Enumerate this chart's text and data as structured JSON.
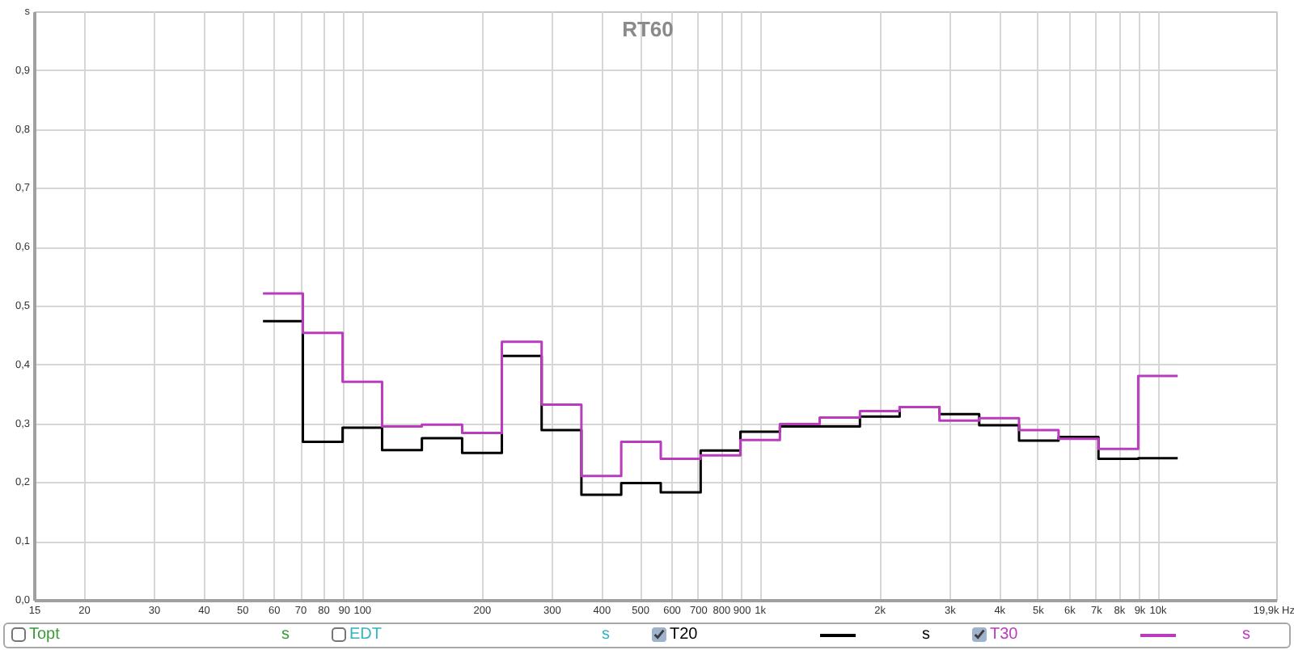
{
  "chart_data": {
    "type": "step",
    "title": "RT60",
    "x": [
      56.2,
      70.8,
      89.1,
      112,
      141,
      178,
      224,
      282,
      355,
      447,
      562,
      708,
      891,
      1120,
      1410,
      1780,
      2240,
      2820,
      3550,
      4470,
      5620,
      7080,
      8910,
      11200
    ],
    "series": [
      {
        "name": "Topt",
        "color": "#3a9a3a",
        "values": [
          null,
          null,
          null,
          null,
          null,
          null,
          null,
          null,
          null,
          null,
          null,
          null,
          null,
          null,
          null,
          null,
          null,
          null,
          null,
          null,
          null,
          null,
          null,
          null
        ]
      },
      {
        "name": "EDT",
        "color": "#33b3c3",
        "values": [
          null,
          null,
          null,
          null,
          null,
          null,
          null,
          null,
          null,
          null,
          null,
          null,
          null,
          null,
          null,
          null,
          null,
          null,
          null,
          null,
          null,
          null,
          null,
          null
        ]
      },
      {
        "name": "T20",
        "color": "#000000",
        "values": [
          0.475,
          0.27,
          0.294,
          0.256,
          0.276,
          0.251,
          0.416,
          0.29,
          0.18,
          0.2,
          0.184,
          0.255,
          0.287,
          0.296,
          0.296,
          0.313,
          0.329,
          0.317,
          0.298,
          0.272,
          0.278,
          0.241,
          0.242,
          0.242
        ]
      },
      {
        "name": "T30",
        "color": "#b83cbc",
        "values": [
          0.522,
          0.455,
          0.372,
          0.296,
          0.299,
          0.285,
          0.44,
          0.333,
          0.212,
          0.27,
          0.241,
          0.247,
          0.273,
          0.3,
          0.311,
          0.322,
          0.329,
          0.306,
          0.31,
          0.29,
          0.275,
          0.258,
          0.382,
          0.382
        ]
      }
    ],
    "annotations": [
      "s",
      "s",
      "s",
      "s"
    ],
    "xlim": [
      15,
      19900
    ],
    "xticks": [
      15,
      20,
      30,
      40,
      50,
      60,
      70,
      80,
      90,
      100,
      200,
      300,
      400,
      500,
      600,
      700,
      800,
      900,
      {
        "value": 1000,
        "label": "1k"
      },
      {
        "value": 2000,
        "label": "2k"
      },
      {
        "value": 3000,
        "label": "3k"
      },
      {
        "value": 4000,
        "label": "4k"
      },
      {
        "value": 5000,
        "label": "5k"
      },
      {
        "value": 6000,
        "label": "6k"
      },
      {
        "value": 7000,
        "label": "7k"
      },
      {
        "value": 8000,
        "label": "8k"
      },
      {
        "value": 9000,
        "label": "9k"
      },
      {
        "value": 10000,
        "label": "10k"
      },
      {
        "value": 19900,
        "label": "19,9k Hz"
      }
    ],
    "ylim": [
      0,
      1
    ],
    "yticks": [
      {
        "value": 0,
        "label": "0,0"
      },
      {
        "value": 0.1,
        "label": "0,1"
      },
      {
        "value": 0.2,
        "label": "0,2"
      },
      {
        "value": 0.3,
        "label": "0,3"
      },
      {
        "value": 0.4,
        "label": "0,4"
      },
      {
        "value": 0.5,
        "label": "0,5"
      },
      {
        "value": 0.6,
        "label": "0,6"
      },
      {
        "value": 0.7,
        "label": "0,7"
      },
      {
        "value": 0.8,
        "label": "0,8"
      },
      {
        "value": 0.9,
        "label": "0,9"
      },
      {
        "value": 1,
        "label": "s"
      }
    ],
    "log": "x",
    "grid": true,
    "legend": "bottom"
  }
}
